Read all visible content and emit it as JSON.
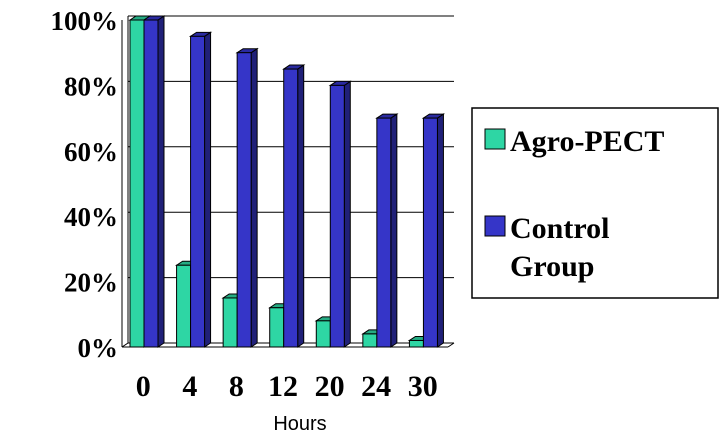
{
  "chart_data": {
    "type": "bar",
    "categories": [
      "0",
      "4",
      "8",
      "12",
      "20",
      "24",
      "30"
    ],
    "series": [
      {
        "name": "Agro-PECT",
        "color": "#2ed6a4",
        "values": [
          100,
          25,
          15,
          12,
          8,
          4,
          2
        ]
      },
      {
        "name": "Control Group",
        "color": "#3535c8",
        "values": [
          100,
          95,
          90,
          85,
          80,
          70,
          70
        ]
      }
    ],
    "xlabel": "Hours",
    "ylabel": "",
    "yticks": [
      "0%",
      "20%",
      "40%",
      "60%",
      "80%",
      "100%"
    ],
    "ylim": [
      0,
      100
    ],
    "grid": true,
    "legend_position": "right",
    "legend_lines": [
      [
        "Agro-PECT"
      ],
      [
        "Control",
        "Group"
      ]
    ]
  }
}
